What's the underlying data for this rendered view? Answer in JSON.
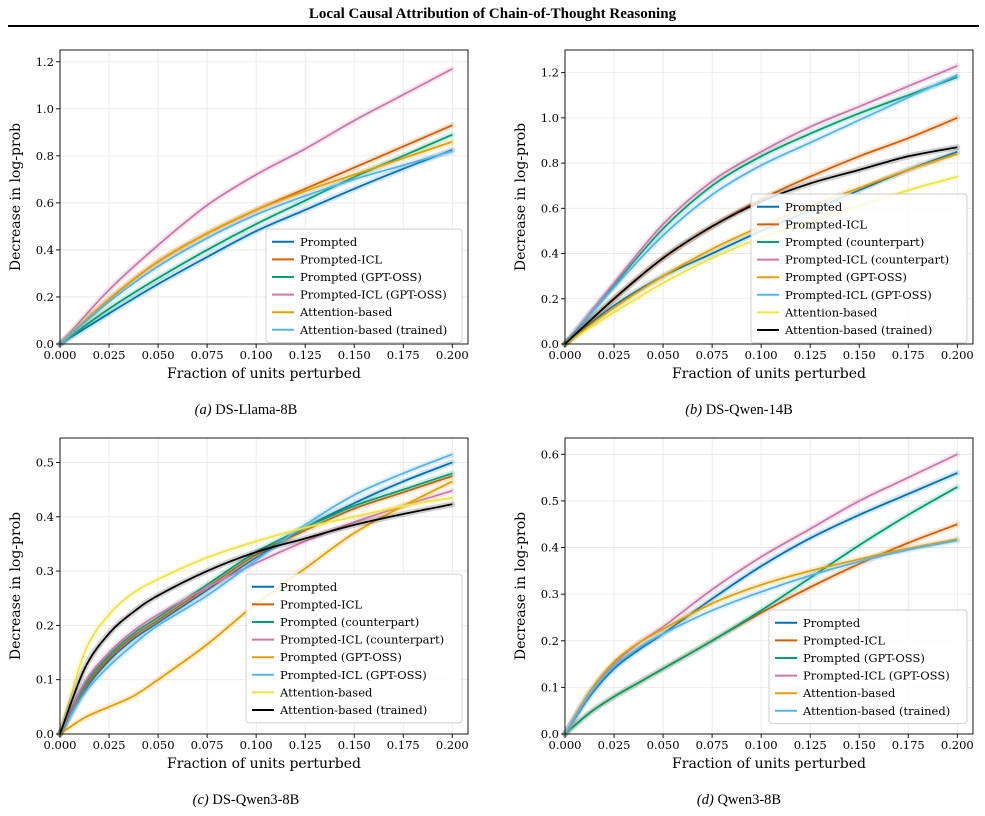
{
  "header": {
    "title": "Local Causal Attribution of Chain-of-Thought Reasoning"
  },
  "colors": {
    "Prompted": "#0072b2",
    "Prompted-ICL": "#d55e00",
    "Prompted (counterpart)": "#009e73",
    "Prompted (GPT-OSS)": "#009e73",
    "Prompted-ICL (counterpart)": "#cc79a7",
    "Prompted-ICL (GPT-OSS)": "#cc79a7",
    "Attention-based": "#e69f00",
    "Attention-based (trained)": "#56b4e9",
    "grid": "#e6e6e6"
  },
  "chart_data": [
    {
      "id": "a",
      "type": "line",
      "caption_label": "(a)",
      "caption_text": "DS-Llama-8B",
      "xlabel": "Fraction of units perturbed",
      "ylabel": "Decrease in log-prob",
      "xlim": [
        0,
        0.208
      ],
      "ylim": [
        0,
        1.25
      ],
      "xticks": [
        0,
        0.025,
        0.05,
        0.075,
        0.1,
        0.125,
        0.15,
        0.175,
        0.2
      ],
      "xtick_labels": [
        "0.000",
        "0.025",
        "0.050",
        "0.075",
        "0.100",
        "0.125",
        "0.150",
        "0.175",
        "0.200"
      ],
      "yticks": [
        0,
        0.2,
        0.4,
        0.6,
        0.8,
        1.0,
        1.2
      ],
      "ytick_labels": [
        "0.0",
        "0.2",
        "0.4",
        "0.6",
        "0.8",
        "1.0",
        "1.2"
      ],
      "grid": true,
      "legend": "lower right",
      "x": [
        0,
        0.025,
        0.05,
        0.075,
        0.1,
        0.125,
        0.15,
        0.175,
        0.2
      ],
      "series": [
        {
          "name": "Prompted",
          "color": "#0072b2",
          "values": [
            0,
            0.13,
            0.255,
            0.37,
            0.48,
            0.57,
            0.66,
            0.745,
            0.825
          ]
        },
        {
          "name": "Prompted-ICL",
          "color": "#d55e00",
          "values": [
            0,
            0.19,
            0.35,
            0.47,
            0.57,
            0.66,
            0.75,
            0.84,
            0.93
          ]
        },
        {
          "name": "Prompted (GPT-OSS)",
          "color": "#009e73",
          "values": [
            0,
            0.15,
            0.28,
            0.4,
            0.51,
            0.61,
            0.71,
            0.8,
            0.89
          ]
        },
        {
          "name": "Prompted-ICL (GPT-OSS)",
          "color": "#cc79a7",
          "values": [
            0,
            0.23,
            0.42,
            0.59,
            0.72,
            0.83,
            0.95,
            1.06,
            1.17
          ]
        },
        {
          "name": "Attention-based",
          "color": "#e69f00",
          "values": [
            0,
            0.19,
            0.35,
            0.47,
            0.57,
            0.65,
            0.72,
            0.79,
            0.86
          ]
        },
        {
          "name": "Attention-based (trained)",
          "color": "#56b4e9",
          "values": [
            0,
            0.18,
            0.33,
            0.45,
            0.55,
            0.63,
            0.7,
            0.76,
            0.82
          ]
        }
      ]
    },
    {
      "id": "b",
      "type": "line",
      "caption_label": "(b)",
      "caption_text": "DS-Qwen-14B",
      "xlabel": "Fraction of units perturbed",
      "ylabel": "Decrease in log-prob",
      "xlim": [
        0,
        0.208
      ],
      "ylim": [
        0,
        1.3
      ],
      "xticks": [
        0,
        0.025,
        0.05,
        0.075,
        0.1,
        0.125,
        0.15,
        0.175,
        0.2
      ],
      "xtick_labels": [
        "0.000",
        "0.025",
        "0.050",
        "0.075",
        "0.100",
        "0.125",
        "0.150",
        "0.175",
        "0.200"
      ],
      "yticks": [
        0,
        0.2,
        0.4,
        0.6,
        0.8,
        1.0,
        1.2
      ],
      "ytick_labels": [
        "0.0",
        "0.2",
        "0.4",
        "0.6",
        "0.8",
        "1.0",
        "1.2"
      ],
      "grid": true,
      "legend": "lower right",
      "x": [
        0,
        0.025,
        0.05,
        0.075,
        0.1,
        0.125,
        0.15,
        0.175,
        0.2
      ],
      "series": [
        {
          "name": "Prompted",
          "color": "#0072b2",
          "values": [
            0,
            0.17,
            0.3,
            0.4,
            0.5,
            0.59,
            0.68,
            0.77,
            0.85
          ]
        },
        {
          "name": "Prompted-ICL",
          "color": "#d55e00",
          "values": [
            0,
            0.2,
            0.38,
            0.52,
            0.64,
            0.74,
            0.83,
            0.91,
            1.0
          ]
        },
        {
          "name": "Prompted (counterpart)",
          "color": "#009e73",
          "values": [
            0,
            0.26,
            0.51,
            0.7,
            0.83,
            0.93,
            1.02,
            1.1,
            1.18
          ]
        },
        {
          "name": "Prompted-ICL (counterpart)",
          "color": "#cc79a7",
          "values": [
            0,
            0.27,
            0.53,
            0.72,
            0.85,
            0.96,
            1.05,
            1.14,
            1.23
          ]
        },
        {
          "name": "Prompted (GPT-OSS)",
          "color": "#e69f00",
          "values": [
            0,
            0.16,
            0.3,
            0.42,
            0.52,
            0.61,
            0.69,
            0.77,
            0.84
          ]
        },
        {
          "name": "Prompted-ICL (GPT-OSS)",
          "color": "#56b4e9",
          "values": [
            0,
            0.25,
            0.48,
            0.66,
            0.79,
            0.89,
            0.99,
            1.09,
            1.19
          ]
        },
        {
          "name": "Attention-based",
          "color": "#f0e442",
          "values": [
            0,
            0.14,
            0.27,
            0.38,
            0.47,
            0.54,
            0.61,
            0.68,
            0.74
          ]
        },
        {
          "name": "Attention-based (trained)",
          "color": "#000000",
          "values": [
            0,
            0.2,
            0.38,
            0.52,
            0.63,
            0.71,
            0.77,
            0.83,
            0.87
          ]
        }
      ]
    },
    {
      "id": "c",
      "type": "line",
      "caption_label": "(c)",
      "caption_text": "DS-Qwen3-8B",
      "xlabel": "Fraction of units perturbed",
      "ylabel": "Decrease in log-prob",
      "xlim": [
        0,
        0.208
      ],
      "ylim": [
        0,
        0.545
      ],
      "xticks": [
        0,
        0.025,
        0.05,
        0.075,
        0.1,
        0.125,
        0.15,
        0.175,
        0.2
      ],
      "xtick_labels": [
        "0.000",
        "0.025",
        "0.050",
        "0.075",
        "0.100",
        "0.125",
        "0.150",
        "0.175",
        "0.200"
      ],
      "yticks": [
        0,
        0.1,
        0.2,
        0.3,
        0.4,
        0.5
      ],
      "ytick_labels": [
        "0.0",
        "0.1",
        "0.2",
        "0.3",
        "0.4",
        "0.5"
      ],
      "grid": true,
      "legend": "lower right",
      "x": [
        0,
        0.0125,
        0.025,
        0.0375,
        0.05,
        0.075,
        0.1,
        0.125,
        0.15,
        0.175,
        0.2
      ],
      "series": [
        {
          "name": "Prompted",
          "color": "#0072b2",
          "values": [
            0,
            0.08,
            0.135,
            0.175,
            0.205,
            0.265,
            0.325,
            0.38,
            0.425,
            0.465,
            0.5
          ]
        },
        {
          "name": "Prompted-ICL",
          "color": "#d55e00",
          "values": [
            0,
            0.085,
            0.14,
            0.18,
            0.21,
            0.27,
            0.33,
            0.375,
            0.415,
            0.445,
            0.475
          ]
        },
        {
          "name": "Prompted (counterpart)",
          "color": "#009e73",
          "values": [
            0,
            0.09,
            0.145,
            0.185,
            0.215,
            0.275,
            0.335,
            0.38,
            0.42,
            0.45,
            0.48
          ]
        },
        {
          "name": "Prompted-ICL (counterpart)",
          "color": "#cc79a7",
          "values": [
            0,
            0.095,
            0.15,
            0.19,
            0.22,
            0.27,
            0.315,
            0.355,
            0.39,
            0.42,
            0.448
          ]
        },
        {
          "name": "Prompted (GPT-OSS)",
          "color": "#e69f00",
          "values": [
            0,
            0.03,
            0.05,
            0.07,
            0.1,
            0.165,
            0.24,
            0.305,
            0.37,
            0.42,
            0.465
          ]
        },
        {
          "name": "Prompted-ICL (GPT-OSS)",
          "color": "#56b4e9",
          "values": [
            0,
            0.075,
            0.125,
            0.165,
            0.2,
            0.255,
            0.32,
            0.385,
            0.44,
            0.48,
            0.515
          ]
        },
        {
          "name": "Attention-based",
          "color": "#f0e442",
          "values": [
            0,
            0.15,
            0.22,
            0.26,
            0.285,
            0.325,
            0.355,
            0.38,
            0.4,
            0.42,
            0.435
          ]
        },
        {
          "name": "Attention-based (trained)",
          "color": "#000000",
          "values": [
            0,
            0.12,
            0.185,
            0.225,
            0.255,
            0.3,
            0.335,
            0.36,
            0.385,
            0.405,
            0.423
          ]
        }
      ]
    },
    {
      "id": "d",
      "type": "line",
      "caption_label": "(d)",
      "caption_text": "Qwen3-8B",
      "xlabel": "Fraction of units perturbed",
      "ylabel": "Decrease in log-prob",
      "xlim": [
        0,
        0.208
      ],
      "ylim": [
        0,
        0.635
      ],
      "xticks": [
        0,
        0.025,
        0.05,
        0.075,
        0.1,
        0.125,
        0.15,
        0.175,
        0.2
      ],
      "xtick_labels": [
        "0.000",
        "0.025",
        "0.050",
        "0.075",
        "0.100",
        "0.125",
        "0.150",
        "0.175",
        "0.200"
      ],
      "yticks": [
        0,
        0.1,
        0.2,
        0.3,
        0.4,
        0.5,
        0.6
      ],
      "ytick_labels": [
        "0.0",
        "0.1",
        "0.2",
        "0.3",
        "0.4",
        "0.5",
        "0.6"
      ],
      "grid": true,
      "legend": "lower right",
      "x": [
        0,
        0.0125,
        0.025,
        0.0375,
        0.05,
        0.075,
        0.1,
        0.125,
        0.15,
        0.175,
        0.2
      ],
      "series": [
        {
          "name": "Prompted",
          "color": "#0072b2",
          "values": [
            0,
            0.08,
            0.14,
            0.18,
            0.215,
            0.29,
            0.36,
            0.42,
            0.47,
            0.515,
            0.56
          ]
        },
        {
          "name": "Prompted-ICL",
          "color": "#d55e00",
          "values": [
            0,
            0.045,
            0.08,
            0.11,
            0.14,
            0.2,
            0.26,
            0.315,
            0.365,
            0.41,
            0.45
          ]
        },
        {
          "name": "Prompted (GPT-OSS)",
          "color": "#009e73",
          "values": [
            0,
            0.045,
            0.08,
            0.11,
            0.14,
            0.2,
            0.265,
            0.335,
            0.405,
            0.47,
            0.53
          ]
        },
        {
          "name": "Prompted-ICL (GPT-OSS)",
          "color": "#cc79a7",
          "values": [
            0,
            0.09,
            0.15,
            0.195,
            0.23,
            0.31,
            0.38,
            0.44,
            0.5,
            0.55,
            0.6
          ]
        },
        {
          "name": "Attention-based",
          "color": "#e69f00",
          "values": [
            0,
            0.09,
            0.155,
            0.195,
            0.225,
            0.28,
            0.32,
            0.35,
            0.375,
            0.398,
            0.418
          ]
        },
        {
          "name": "Attention-based (trained)",
          "color": "#56b4e9",
          "values": [
            0,
            0.085,
            0.145,
            0.185,
            0.215,
            0.265,
            0.305,
            0.34,
            0.37,
            0.395,
            0.415
          ]
        }
      ]
    }
  ]
}
